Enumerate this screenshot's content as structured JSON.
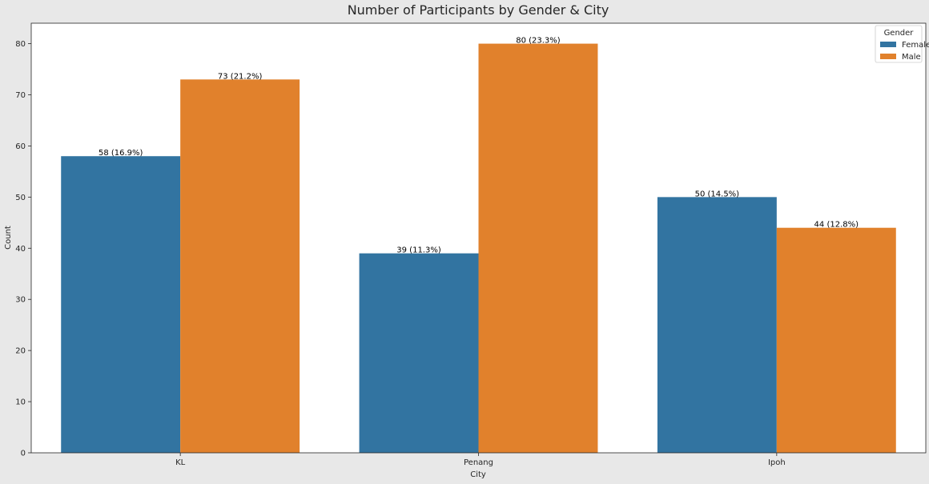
{
  "chart_data": {
    "type": "bar",
    "title": "Number of Participants by Gender & City",
    "xlabel": "City",
    "ylabel": "Count",
    "categories": [
      "KL",
      "Penang",
      "Ipoh"
    ],
    "series": [
      {
        "name": "Female",
        "color": "#3274a1",
        "values": [
          58,
          39,
          50
        ],
        "labels": [
          "58 (16.9%)",
          "39 (11.3%)",
          "50 (14.5%)"
        ]
      },
      {
        "name": "Male",
        "color": "#e1812c",
        "values": [
          73,
          80,
          44
        ],
        "labels": [
          "73 (21.2%)",
          "80 (23.3%)",
          "44 (12.8%)"
        ]
      }
    ],
    "ylim": [
      0,
      84
    ],
    "yticks": [
      0,
      10,
      20,
      30,
      40,
      50,
      60,
      70,
      80
    ],
    "legend": {
      "title": "Gender",
      "placement": "top-right"
    },
    "grid": false
  }
}
